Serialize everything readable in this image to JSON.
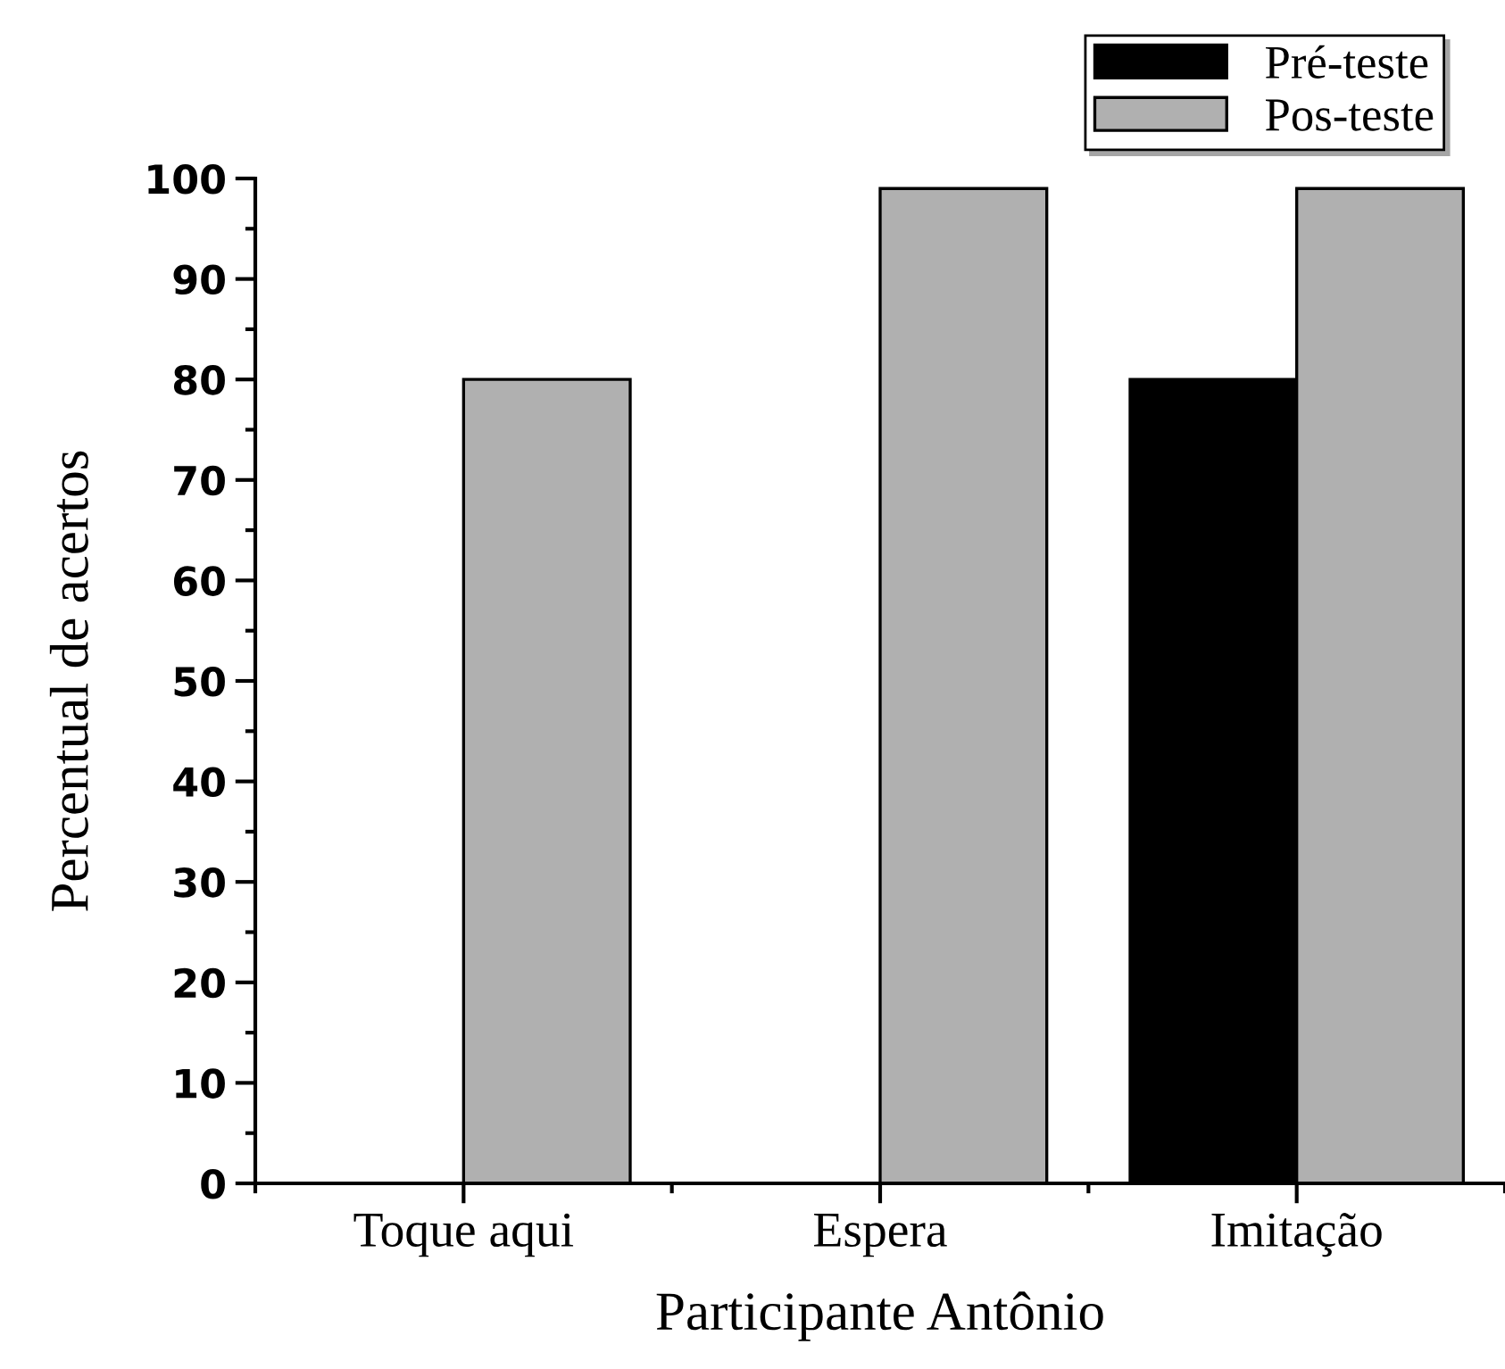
{
  "chart_data": {
    "type": "bar",
    "xlabel": "Participante Antônio",
    "ylabel": "Percentual de acertos",
    "categories": [
      "Toque aqui",
      "Espera",
      "Imitação"
    ],
    "series": [
      {
        "name": "Pré-teste",
        "color": "#000000",
        "values": [
          0,
          0,
          80
        ]
      },
      {
        "name": "Pos-teste",
        "color": "#b0b0b0",
        "values": [
          80,
          99,
          99
        ]
      }
    ],
    "ylim": [
      0,
      100
    ],
    "yticks": [
      0,
      10,
      20,
      30,
      40,
      50,
      60,
      70,
      80,
      90,
      100
    ],
    "grid": false,
    "legend": "top right"
  }
}
